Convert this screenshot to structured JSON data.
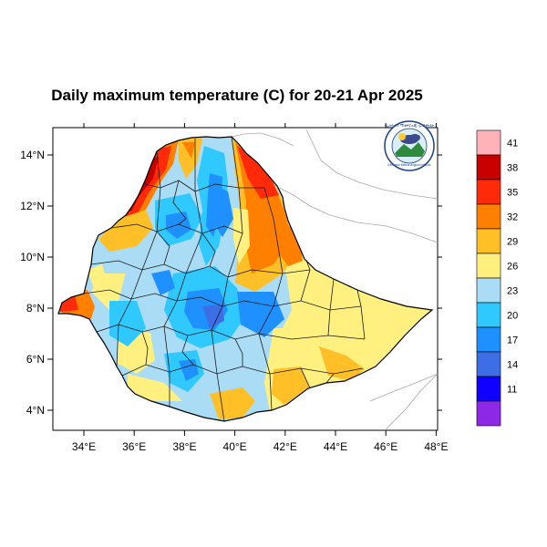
{
  "title": "Daily maximum temperature (C) for 20-21 Apr 2025",
  "chart_data": {
    "type": "heatmap",
    "title": "Daily maximum temperature (C) for 20-21 Apr 2025",
    "xlabel": "",
    "ylabel": "",
    "xlim": [
      33,
      48
    ],
    "ylim": [
      3.2,
      15
    ],
    "x_ticks": [
      "34°E",
      "36°E",
      "38°E",
      "40°E",
      "42°E",
      "44°E",
      "46°E",
      "48°E"
    ],
    "y_ticks": [
      "4°N",
      "6°N",
      "8°N",
      "10°N",
      "12°N",
      "14°N"
    ],
    "colorbar": {
      "levels": [
        "41",
        "38",
        "35",
        "32",
        "29",
        "26",
        "23",
        "20",
        "17",
        "14",
        "11"
      ],
      "colors": [
        "#ffb3b8",
        "#c80000",
        "#ff2a0a",
        "#ff7f00",
        "#ffbf26",
        "#fff080",
        "#aadcf5",
        "#2fc8ff",
        "#1e90ff",
        "#3d6ee6",
        "#0f00ff",
        "#8c28e6"
      ]
    }
  },
  "logo": {
    "text_top": "የኢትዮጵያ ሚቲዎሮሎጂ ኢንስቲትዩት",
    "text_bottom": "Ethiopian Meteorological Institute"
  }
}
